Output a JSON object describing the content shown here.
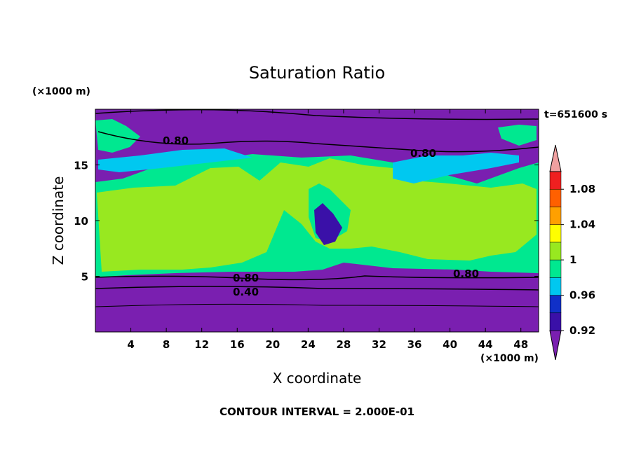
{
  "chart_data": {
    "type": "heatmap",
    "title": "Saturation Ratio",
    "xlabel": "X coordinate",
    "ylabel": "Z coordinate",
    "x_unit": "(×1000 m)",
    "y_unit": "(×1000 m)",
    "time_label": "t=651600 s",
    "footer": "CONTOUR INTERVAL = 2.000E-01",
    "xlim": [
      0,
      50
    ],
    "ylim": [
      0,
      20
    ],
    "x_ticks": [
      4,
      8,
      12,
      16,
      20,
      24,
      28,
      32,
      36,
      40,
      44,
      48
    ],
    "y_ticks": [
      5,
      10,
      15
    ],
    "contour_labels": [
      "0.80",
      "0.80",
      "0.80",
      "0.80",
      "0.40"
    ],
    "colorbar": {
      "levels": [
        0.92,
        0.94,
        0.96,
        0.98,
        1.0,
        1.02,
        1.04,
        1.06,
        1.08,
        1.1
      ],
      "tick_labels": [
        "0.92",
        "0.96",
        "1",
        "1.04",
        "1.08"
      ],
      "colors": [
        "#7a1fb0",
        "#3a10a8",
        "#1030c8",
        "#00c8f0",
        "#00e890",
        "#98e820",
        "#ffff00",
        "#ffa000",
        "#ff6000",
        "#f02020",
        "#f0a0a0"
      ]
    },
    "grid": false
  }
}
